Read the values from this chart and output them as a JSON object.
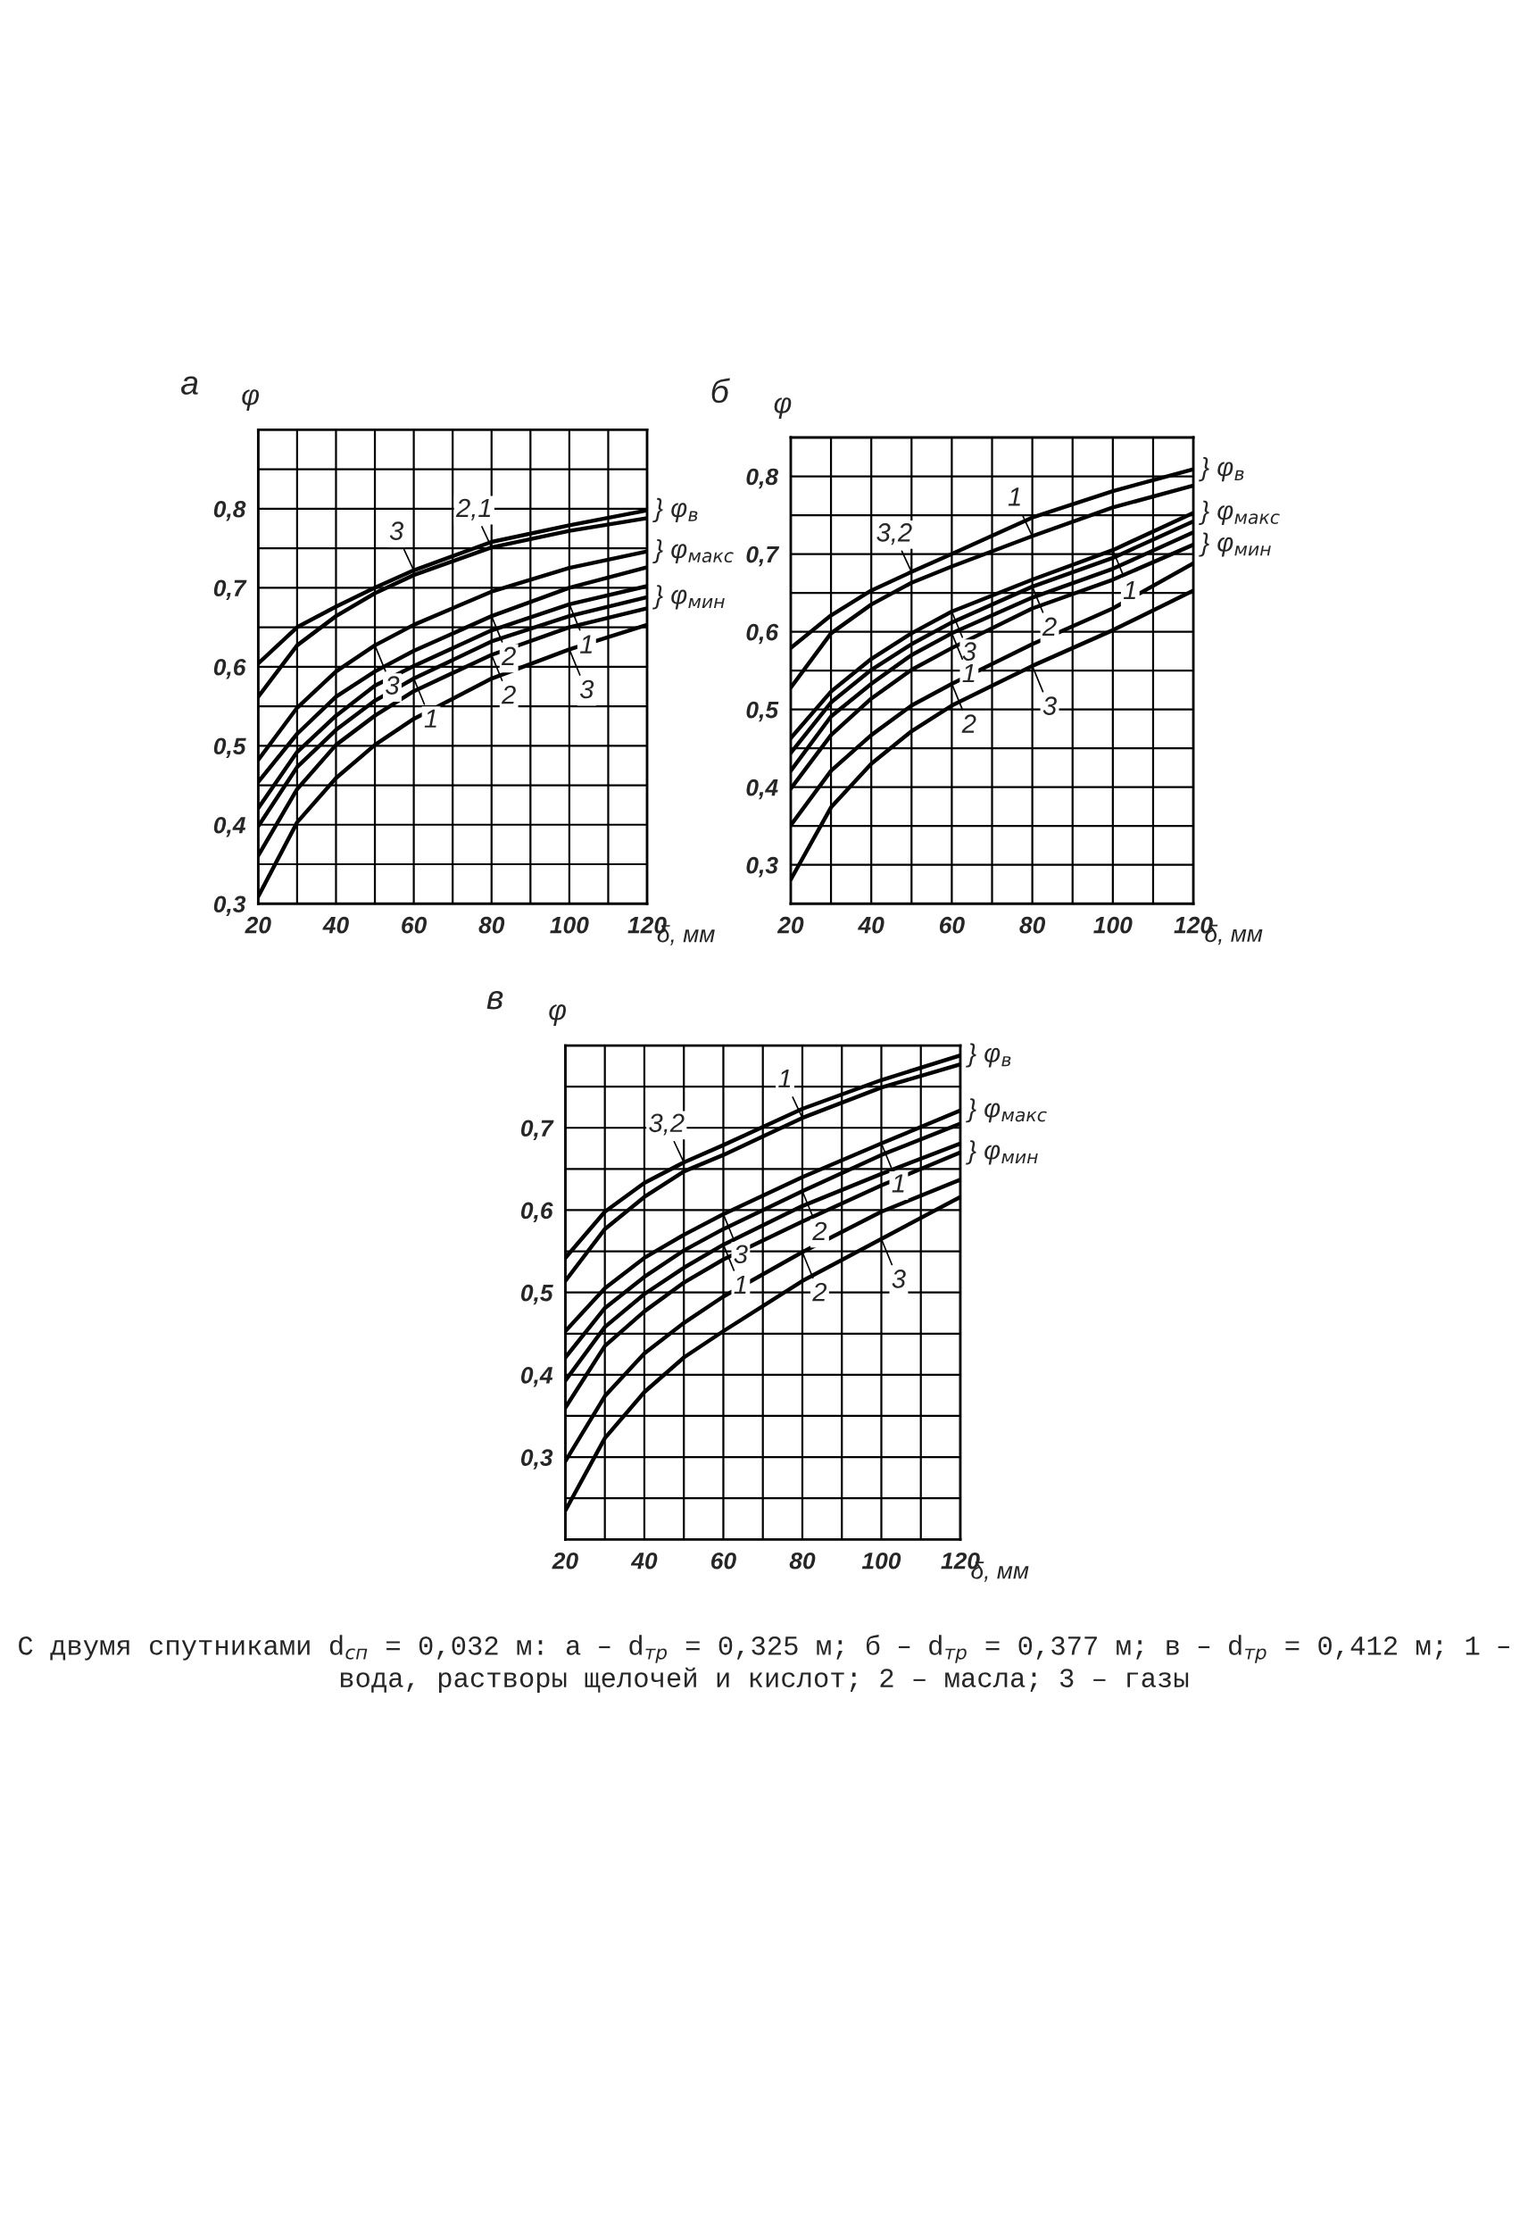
{
  "chart_data": [
    {
      "type": "line",
      "title": "а",
      "ylabel": "φ",
      "xlabel": "δ, мм",
      "marker": "none",
      "line_style": "solid",
      "grid": true,
      "x": [
        20,
        30,
        40,
        50,
        60,
        80,
        100,
        120
      ],
      "xlim": [
        20,
        120
      ],
      "xticks": [
        20,
        {
          "value": 30,
          "label": null
        },
        40,
        {
          "value": 50,
          "label": null
        },
        60,
        {
          "value": 70,
          "label": null
        },
        80,
        {
          "value": 90,
          "label": null
        },
        100,
        {
          "value": 110,
          "label": null
        },
        120
      ],
      "ylim": [
        0.3,
        0.9
      ],
      "yticks": [
        {
          "value": 0.3,
          "label": "0,3"
        },
        {
          "value": 0.35,
          "label": null
        },
        {
          "value": 0.4,
          "label": "0,4"
        },
        {
          "value": 0.45,
          "label": null
        },
        {
          "value": 0.5,
          "label": "0,5"
        },
        {
          "value": 0.55,
          "label": null
        },
        {
          "value": 0.6,
          "label": "0,6"
        },
        {
          "value": 0.65,
          "label": null
        },
        {
          "value": 0.7,
          "label": "0,7"
        },
        {
          "value": 0.75,
          "label": null
        },
        {
          "value": 0.8,
          "label": "0,8"
        },
        {
          "value": 0.85,
          "label": null
        }
      ],
      "series": [
        {
          "color": "#000000",
          "values": [
            0.604,
            0.65,
            0.676,
            0.7,
            0.722,
            0.758,
            0.779,
            0.798
          ]
        },
        {
          "color": "#000000",
          "values": [
            0.562,
            0.627,
            0.664,
            0.693,
            0.716,
            0.751,
            0.772,
            0.788
          ]
        },
        {
          "color": "#000000",
          "values": [
            0.482,
            0.548,
            0.594,
            0.627,
            0.653,
            0.695,
            0.725,
            0.746
          ]
        },
        {
          "color": "#000000",
          "values": [
            0.454,
            0.515,
            0.562,
            0.594,
            0.62,
            0.664,
            0.7,
            0.726
          ]
        },
        {
          "color": "#000000",
          "values": [
            0.421,
            0.492,
            0.538,
            0.576,
            0.601,
            0.646,
            0.679,
            0.702
          ]
        },
        {
          "color": "#000000",
          "values": [
            0.398,
            0.473,
            0.52,
            0.557,
            0.585,
            0.632,
            0.664,
            0.688
          ]
        },
        {
          "color": "#000000",
          "values": [
            0.361,
            0.445,
            0.501,
            0.538,
            0.569,
            0.615,
            0.65,
            0.674
          ]
        },
        {
          "color": "#000000",
          "values": [
            0.309,
            0.403,
            0.459,
            0.501,
            0.534,
            0.585,
            0.622,
            0.653
          ]
        }
      ],
      "annotations": [
        {
          "text": "3",
          "x": 60,
          "y": 0.722
        },
        {
          "text": "2,1",
          "x": 80,
          "y": 0.751
        },
        {
          "text": "2",
          "x": 80,
          "y": 0.664
        },
        {
          "text": "1",
          "x": 100,
          "y": 0.679
        },
        {
          "text": "3",
          "x": 50,
          "y": 0.627
        },
        {
          "text": "1",
          "x": 60,
          "y": 0.585
        },
        {
          "text": "2",
          "x": 80,
          "y": 0.615
        },
        {
          "text": "3",
          "x": 100,
          "y": 0.622
        },
        {
          "text": "} φ$_{в}$",
          "x": 120,
          "y": 0.798
        },
        {
          "text": "} φ$_{макс}$",
          "x": 120,
          "y": 0.746
        },
        {
          "text": "} φ$_{мин}$",
          "x": 120,
          "y": 0.688
        }
      ]
    },
    {
      "type": "line",
      "title": "б",
      "ylabel": "φ",
      "xlabel": "δ, мм",
      "marker": "none",
      "line_style": "solid",
      "grid": true,
      "x": [
        20,
        30,
        40,
        50,
        60,
        80,
        100,
        120
      ],
      "xlim": [
        20,
        120
      ],
      "xticks": [
        20,
        {
          "value": 30,
          "label": null
        },
        40,
        {
          "value": 50,
          "label": null
        },
        60,
        {
          "value": 70,
          "label": null
        },
        80,
        {
          "value": 90,
          "label": null
        },
        100,
        {
          "value": 110,
          "label": null
        },
        120
      ],
      "ylim": [
        0.25,
        0.85
      ],
      "yticks": [
        {
          "value": 0.3,
          "label": "0,3"
        },
        {
          "value": 0.35,
          "label": null
        },
        {
          "value": 0.4,
          "label": "0,4"
        },
        {
          "value": 0.45,
          "label": null
        },
        {
          "value": 0.5,
          "label": "0,5"
        },
        {
          "value": 0.55,
          "label": null
        },
        {
          "value": 0.6,
          "label": "0,6"
        },
        {
          "value": 0.65,
          "label": null
        },
        {
          "value": 0.7,
          "label": "0,7"
        },
        {
          "value": 0.75,
          "label": null
        },
        {
          "value": 0.8,
          "label": "0,8"
        }
      ],
      "series": [
        {
          "color": "#000000",
          "values": [
            0.579,
            0.621,
            0.653,
            0.677,
            0.7,
            0.747,
            0.781,
            0.809
          ]
        },
        {
          "color": "#000000",
          "values": [
            0.528,
            0.598,
            0.635,
            0.663,
            0.684,
            0.723,
            0.76,
            0.788
          ]
        },
        {
          "color": "#000000",
          "values": [
            0.463,
            0.523,
            0.565,
            0.598,
            0.626,
            0.667,
            0.705,
            0.753
          ]
        },
        {
          "color": "#000000",
          "values": [
            0.444,
            0.509,
            0.551,
            0.584,
            0.612,
            0.658,
            0.695,
            0.742
          ]
        },
        {
          "color": "#000000",
          "values": [
            0.421,
            0.491,
            0.533,
            0.57,
            0.598,
            0.644,
            0.681,
            0.728
          ]
        },
        {
          "color": "#000000",
          "values": [
            0.398,
            0.467,
            0.514,
            0.551,
            0.579,
            0.63,
            0.667,
            0.712
          ]
        },
        {
          "color": "#000000",
          "values": [
            0.351,
            0.421,
            0.467,
            0.505,
            0.533,
            0.584,
            0.63,
            0.688
          ]
        },
        {
          "color": "#000000",
          "values": [
            0.281,
            0.374,
            0.43,
            0.472,
            0.505,
            0.556,
            0.602,
            0.653
          ]
        }
      ],
      "annotations": [
        {
          "text": "3,2",
          "x": 50,
          "y": 0.677
        },
        {
          "text": "1",
          "x": 80,
          "y": 0.723
        },
        {
          "text": "3",
          "x": 60,
          "y": 0.626
        },
        {
          "text": "1",
          "x": 60,
          "y": 0.598
        },
        {
          "text": "2",
          "x": 80,
          "y": 0.658
        },
        {
          "text": "1",
          "x": 100,
          "y": 0.705
        },
        {
          "text": "3",
          "x": 80,
          "y": 0.556
        },
        {
          "text": "2",
          "x": 60,
          "y": 0.533
        },
        {
          "text": "} φ$_{в}$",
          "x": 120,
          "y": 0.809
        },
        {
          "text": "} φ$_{макс}$",
          "x": 120,
          "y": 0.753
        },
        {
          "text": "} φ$_{мин}$",
          "x": 120,
          "y": 0.712
        }
      ]
    },
    {
      "type": "line",
      "title": "в",
      "ylabel": "φ",
      "xlabel": "δ, мм",
      "marker": "none",
      "line_style": "solid",
      "grid": true,
      "x": [
        20,
        30,
        40,
        50,
        60,
        80,
        100,
        120
      ],
      "xlim": [
        20,
        120
      ],
      "xticks": [
        20,
        {
          "value": 30,
          "label": null
        },
        40,
        {
          "value": 50,
          "label": null
        },
        60,
        {
          "value": 70,
          "label": null
        },
        80,
        {
          "value": 90,
          "label": null
        },
        100,
        {
          "value": 110,
          "label": null
        },
        120
      ],
      "ylim": [
        0.2,
        0.8
      ],
      "yticks": [
        {
          "value": 0.25,
          "label": null
        },
        {
          "value": 0.3,
          "label": "0,3"
        },
        {
          "value": 0.35,
          "label": null
        },
        {
          "value": 0.4,
          "label": "0,4"
        },
        {
          "value": 0.45,
          "label": null
        },
        {
          "value": 0.5,
          "label": "0,5"
        },
        {
          "value": 0.55,
          "label": null
        },
        {
          "value": 0.6,
          "label": "0,6"
        },
        {
          "value": 0.65,
          "label": null
        },
        {
          "value": 0.7,
          "label": "0,7"
        },
        {
          "value": 0.75,
          "label": null
        }
      ],
      "series": [
        {
          "color": "#000000",
          "values": [
            0.542,
            0.598,
            0.633,
            0.658,
            0.679,
            0.723,
            0.758,
            0.788
          ]
        },
        {
          "color": "#000000",
          "values": [
            0.514,
            0.577,
            0.616,
            0.647,
            0.667,
            0.712,
            0.749,
            0.777
          ]
        },
        {
          "color": "#000000",
          "values": [
            0.453,
            0.505,
            0.542,
            0.57,
            0.595,
            0.64,
            0.681,
            0.721
          ]
        },
        {
          "color": "#000000",
          "values": [
            0.421,
            0.481,
            0.519,
            0.551,
            0.577,
            0.623,
            0.667,
            0.705
          ]
        },
        {
          "color": "#000000",
          "values": [
            0.393,
            0.458,
            0.498,
            0.53,
            0.558,
            0.605,
            0.644,
            0.681
          ]
        },
        {
          "color": "#000000",
          "values": [
            0.36,
            0.435,
            0.477,
            0.512,
            0.54,
            0.586,
            0.63,
            0.67
          ]
        },
        {
          "color": "#000000",
          "values": [
            0.295,
            0.374,
            0.426,
            0.463,
            0.495,
            0.549,
            0.598,
            0.637
          ]
        },
        {
          "color": "#000000",
          "values": [
            0.235,
            0.323,
            0.379,
            0.421,
            0.453,
            0.514,
            0.565,
            0.616
          ]
        }
      ],
      "annotations": [
        {
          "text": "3,2",
          "x": 50,
          "y": 0.658
        },
        {
          "text": "1",
          "x": 80,
          "y": 0.712
        },
        {
          "text": "3",
          "x": 60,
          "y": 0.595
        },
        {
          "text": "2",
          "x": 80,
          "y": 0.623
        },
        {
          "text": "1",
          "x": 100,
          "y": 0.681
        },
        {
          "text": "1",
          "x": 60,
          "y": 0.558
        },
        {
          "text": "2",
          "x": 80,
          "y": 0.549
        },
        {
          "text": "3",
          "x": 100,
          "y": 0.565
        },
        {
          "text": "} φ$_{в}$",
          "x": 120,
          "y": 0.788
        },
        {
          "text": "} φ$_{макс}$",
          "x": 120,
          "y": 0.721
        },
        {
          "text": "} φ$_{мин}$",
          "x": 120,
          "y": 0.67
        },
        "С двумя спутниками d$_{сп}$ = 0,032 м: а – d$_{тр}$ = 0,325 м; б – d$_{тр}$ = 0,377 м; в – d$_{тр}$ = 0,412 м; 1 – вода, растворы щелочей и кислот; 2 – масла; 3 – газы"
      ]
    }
  ]
}
